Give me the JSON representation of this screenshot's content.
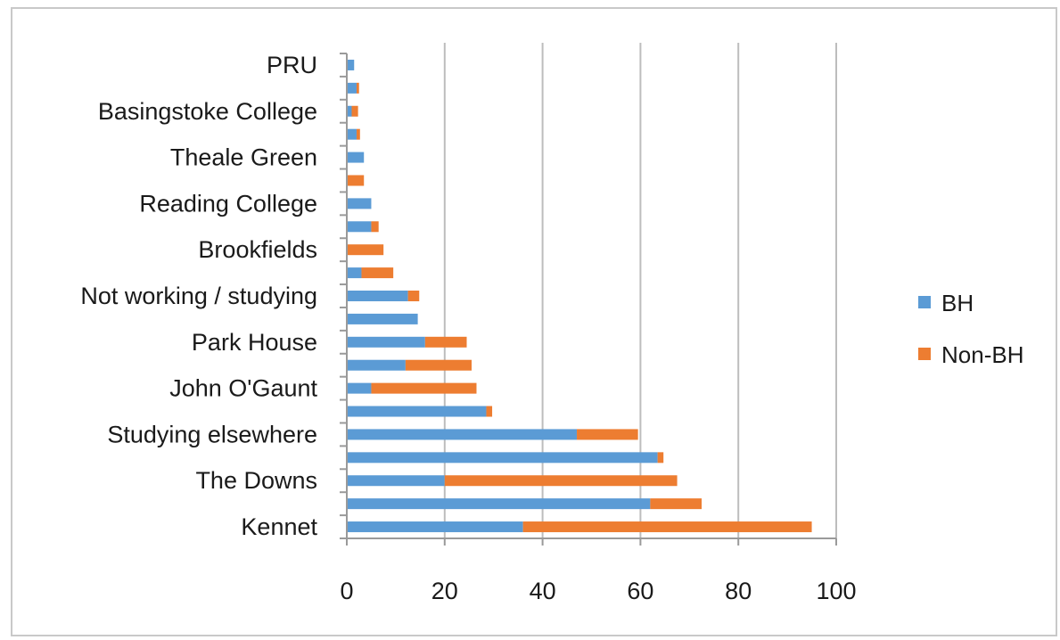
{
  "chart_data": {
    "type": "bar",
    "orientation": "horizontal",
    "stacked": true,
    "title": "",
    "xlabel": "",
    "ylabel": "",
    "xlim": [
      0,
      100
    ],
    "x_ticks": [
      0,
      20,
      40,
      60,
      80,
      100
    ],
    "grid": "vertical",
    "legend_position": "right",
    "category_labels": [
      "Kennet",
      "The Downs",
      "Studying elsewhere",
      "John O'Gaunt",
      "Park House",
      "Not working / studying",
      "Brookfields",
      "Reading College",
      "Theale Green",
      "Basingstoke College",
      "PRU"
    ],
    "bars_bottom_to_top": [
      {
        "BH": 36,
        "Non-BH": 59
      },
      {
        "BH": 62,
        "Non-BH": 10.5
      },
      {
        "BH": 20,
        "Non-BH": 47.5
      },
      {
        "BH": 63.5,
        "Non-BH": 1.2
      },
      {
        "BH": 47,
        "Non-BH": 12.5
      },
      {
        "BH": 28.5,
        "Non-BH": 1.2
      },
      {
        "BH": 5,
        "Non-BH": 21.5
      },
      {
        "BH": 12,
        "Non-BH": 13.5
      },
      {
        "BH": 16,
        "Non-BH": 8.5
      },
      {
        "BH": 14.5,
        "Non-BH": 0
      },
      {
        "BH": 12.5,
        "Non-BH": 2.3
      },
      {
        "BH": 3,
        "Non-BH": 6.5
      },
      {
        "BH": 0,
        "Non-BH": 7.5
      },
      {
        "BH": 5,
        "Non-BH": 1.5
      },
      {
        "BH": 5,
        "Non-BH": 0
      },
      {
        "BH": 0,
        "Non-BH": 3.5
      },
      {
        "BH": 3.5,
        "Non-BH": 0
      },
      {
        "BH": 2,
        "Non-BH": 0.7
      },
      {
        "BH": 1,
        "Non-BH": 1.3
      },
      {
        "BH": 2,
        "Non-BH": 0.5
      },
      {
        "BH": 1.5,
        "Non-BH": 0
      }
    ],
    "series": [
      {
        "name": "BH",
        "color": "#5b9bd5"
      },
      {
        "name": "Non-BH",
        "color": "#ed7d31"
      }
    ]
  }
}
